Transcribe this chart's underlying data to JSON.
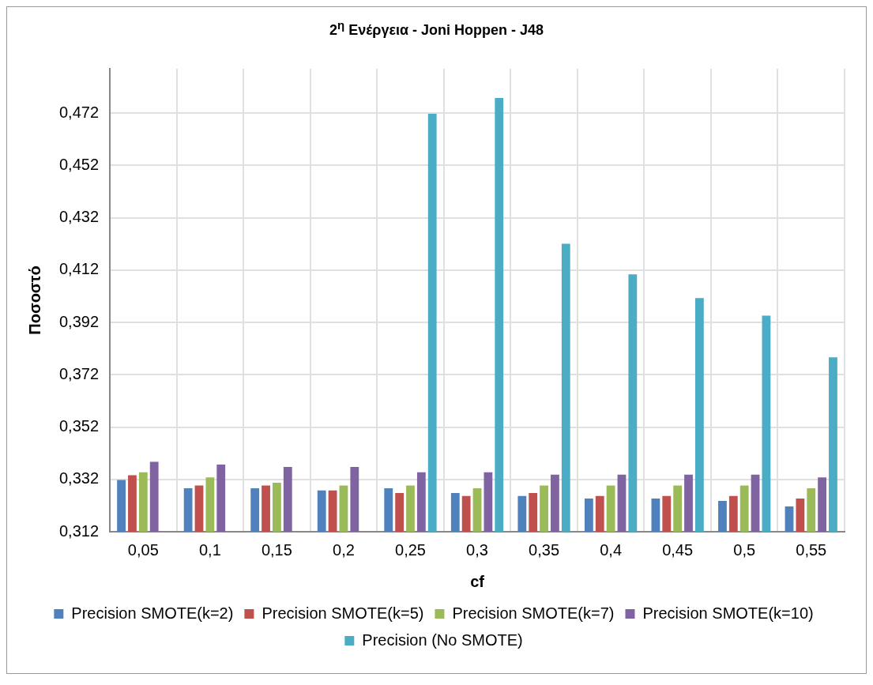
{
  "chart_data": {
    "type": "bar",
    "title": "2$^{η}$ Ενέργεια - Joni Hoppen - J48",
    "xlabel": "cf",
    "ylabel": "Ποσοστό",
    "categories": [
      "0,05",
      "0,1",
      "0,15",
      "0,2",
      "0,25",
      "0,3",
      "0,35",
      "0,4",
      "0,45",
      "0,5",
      "0,55"
    ],
    "series": [
      {
        "name": "Precision SMOTE(k=2)",
        "color": "#4f81bd",
        "values": [
          0.3318,
          0.3286,
          0.3286,
          0.3278,
          0.3286,
          0.3268,
          0.3257,
          0.3247,
          0.3247,
          0.3238,
          0.3217
        ]
      },
      {
        "name": "Precision SMOTE(k=5)",
        "color": "#c0504d",
        "values": [
          0.3336,
          0.3297,
          0.3297,
          0.3278,
          0.3268,
          0.3257,
          0.3268,
          0.3257,
          0.3257,
          0.3257,
          0.3247
        ]
      },
      {
        "name": "Precision SMOTE(k=7)",
        "color": "#9bbb59",
        "values": [
          0.3347,
          0.3328,
          0.3307,
          0.3297,
          0.3297,
          0.3286,
          0.3297,
          0.3297,
          0.3297,
          0.3297,
          0.3286
        ]
      },
      {
        "name": "Precision SMOTE(k=10)",
        "color": "#8064a2",
        "values": [
          0.3387,
          0.3377,
          0.3368,
          0.3368,
          0.3347,
          0.3347,
          0.3338,
          0.3338,
          0.3338,
          0.3338,
          0.3328
        ]
      },
      {
        "name": "Precision (No SMOTE)",
        "color": "#4bacc6",
        "values": [
          null,
          null,
          null,
          null,
          0.4718,
          0.4778,
          0.4221,
          0.4104,
          0.4013,
          0.3946,
          0.3787
        ]
      }
    ],
    "ylim": [
      0.312,
      0.489
    ],
    "yticks": [
      {
        "value": 0.312,
        "label": "0,312"
      },
      {
        "value": 0.332,
        "label": "0,332"
      },
      {
        "value": 0.352,
        "label": "0,352"
      },
      {
        "value": 0.372,
        "label": "0,372"
      },
      {
        "value": 0.392,
        "label": "0,392"
      },
      {
        "value": 0.412,
        "label": "0,412"
      },
      {
        "value": 0.432,
        "label": "0,432"
      },
      {
        "value": 0.452,
        "label": "0,452"
      },
      {
        "value": 0.472,
        "label": "0,472"
      }
    ],
    "grid": true,
    "legend": "bottom"
  }
}
